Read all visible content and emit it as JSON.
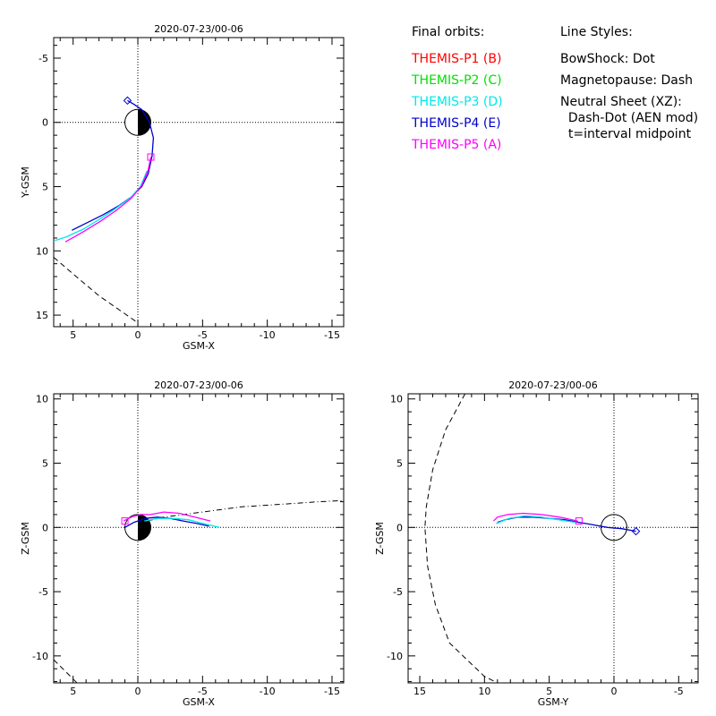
{
  "page": {
    "background": "#ffffff"
  },
  "legend": {
    "orbits_title": "Final orbits:",
    "orbits": [
      {
        "label": "THEMIS-P1 (B)",
        "color": "#ff0000"
      },
      {
        "label": "THEMIS-P2 (C)",
        "color": "#00e000"
      },
      {
        "label": "THEMIS-P3 (D)",
        "color": "#00e8e8"
      },
      {
        "label": "THEMIS-P4 (E)",
        "color": "#0000cc"
      },
      {
        "label": "THEMIS-P5 (A)",
        "color": "#ff00ff"
      }
    ],
    "styles_title": "Line Styles:",
    "styles": [
      "BowShock: Dot",
      "Magnetopause: Dash",
      "Neutral Sheet (XZ):",
      "  Dash-Dot (AEN mod)",
      "  t=interval midpoint"
    ]
  },
  "chart_data": [
    {
      "type": "line",
      "title": "2020-07-23/00-06",
      "xlabel": "GSM-X",
      "ylabel": "Y-GSM",
      "xlim": [
        6.5,
        -15.9
      ],
      "ylim": [
        -6.6,
        15.9
      ],
      "xticks": [
        5,
        0,
        -5,
        -10,
        -15
      ],
      "yticks": [
        -5,
        0,
        5,
        10,
        15
      ],
      "earth": "day-night",
      "series": [
        {
          "color": "#0000cc",
          "points": [
            [
              0.8,
              -1.7
            ],
            [
              0.3,
              -1.4
            ],
            [
              -0.3,
              -1.0
            ],
            [
              -0.9,
              0.0
            ],
            [
              -1.2,
              1.2
            ],
            [
              -1.1,
              2.6
            ],
            [
              -0.8,
              4.0
            ],
            [
              -0.3,
              5.0
            ],
            [
              0.5,
              5.8
            ],
            [
              1.5,
              6.5
            ],
            [
              2.7,
              7.2
            ],
            [
              3.9,
              7.8
            ],
            [
              5.1,
              8.4
            ]
          ]
        },
        {
          "color": "#00e8e8",
          "points": [
            [
              -0.7,
              3.8
            ],
            [
              -0.2,
              5.0
            ],
            [
              0.6,
              5.9
            ],
            [
              1.7,
              6.7
            ],
            [
              2.9,
              7.5
            ],
            [
              4.2,
              8.3
            ],
            [
              5.5,
              8.9
            ],
            [
              6.4,
              9.2
            ]
          ]
        },
        {
          "color": "#ff00ff",
          "points": [
            [
              -1.0,
              2.7
            ],
            [
              -0.8,
              3.7
            ],
            [
              -0.3,
              4.9
            ],
            [
              0.5,
              5.9
            ],
            [
              1.6,
              6.8
            ],
            [
              2.9,
              7.7
            ],
            [
              4.2,
              8.5
            ],
            [
              5.6,
              9.3
            ]
          ]
        }
      ],
      "markers": [
        {
          "shape": "diamond",
          "color": "#0000cc",
          "x": 0.8,
          "y": -1.7
        },
        {
          "shape": "square",
          "color": "#ff00ff",
          "x": -1.0,
          "y": 2.7
        }
      ],
      "boundaries": [
        {
          "style": "dash",
          "points": [
            [
              6.5,
              10.5
            ],
            [
              5.0,
              11.8
            ],
            [
              3.0,
              13.5
            ],
            [
              1.0,
              14.9
            ],
            [
              0.0,
              15.6
            ]
          ]
        }
      ]
    },
    {
      "type": "line",
      "title": "2020-07-23/00-06",
      "xlabel": "GSM-X",
      "ylabel": "Z-GSM",
      "xlim": [
        6.5,
        -15.9
      ],
      "ylim": [
        10.4,
        -12.1
      ],
      "xticks": [
        5,
        0,
        -5,
        -10,
        -15
      ],
      "yticks": [
        10,
        5,
        0,
        -5,
        -10
      ],
      "earth": "day-night",
      "series": [
        {
          "color": "#0000cc",
          "points": [
            [
              1.0,
              0.0
            ],
            [
              0.3,
              0.4
            ],
            [
              -0.6,
              0.7
            ],
            [
              -1.5,
              0.8
            ],
            [
              -2.5,
              0.7
            ],
            [
              -3.5,
              0.5
            ],
            [
              -4.6,
              0.3
            ],
            [
              -5.5,
              0.1
            ]
          ]
        },
        {
          "color": "#00e8e8",
          "points": [
            [
              -0.5,
              0.5
            ],
            [
              -1.5,
              0.7
            ],
            [
              -2.7,
              0.7
            ],
            [
              -3.9,
              0.6
            ],
            [
              -5.1,
              0.3
            ],
            [
              -6.3,
              0.0
            ]
          ]
        },
        {
          "color": "#ff00ff",
          "points": [
            [
              -1.0,
              1.0
            ],
            [
              -2.0,
              1.2
            ],
            [
              -3.2,
              1.1
            ],
            [
              -4.4,
              0.8
            ],
            [
              -5.6,
              0.5
            ]
          ]
        },
        {
          "color": "#ff00ff",
          "points": [
            [
              1.1,
              0.5
            ],
            [
              0.5,
              0.8
            ],
            [
              -0.2,
              1.0
            ],
            [
              -1.0,
              1.0
            ]
          ]
        }
      ],
      "markers": [
        {
          "shape": "square",
          "color": "#ff00ff",
          "x": 1.0,
          "y": 0.5
        }
      ],
      "boundaries": [
        {
          "style": "dash-dot",
          "points": [
            [
              1.0,
              0.1
            ],
            [
              -2.0,
              0.8
            ],
            [
              -5.0,
              1.2
            ],
            [
              -8.0,
              1.6
            ],
            [
              -11.0,
              1.8
            ],
            [
              -14.0,
              2.0
            ],
            [
              -15.9,
              2.1
            ]
          ]
        },
        {
          "style": "dash",
          "points": [
            [
              6.5,
              -10.3
            ],
            [
              5.5,
              -11.3
            ],
            [
              4.7,
              -12.1
            ]
          ]
        }
      ]
    },
    {
      "type": "line",
      "title": "2020-07-23/00-06",
      "xlabel": "GSM-Y",
      "ylabel": "Z-GSM",
      "xlim": [
        15.9,
        -6.5
      ],
      "ylim": [
        10.4,
        -12.1
      ],
      "xticks": [
        15,
        10,
        5,
        0,
        -5
      ],
      "yticks": [
        10,
        5,
        0,
        -5,
        -10
      ],
      "earth": "circle",
      "series": [
        {
          "color": "#0000cc",
          "points": [
            [
              -1.7,
              -0.3
            ],
            [
              -0.6,
              -0.1
            ],
            [
              0.5,
              0.0
            ],
            [
              1.6,
              0.2
            ],
            [
              2.7,
              0.4
            ],
            [
              3.8,
              0.6
            ],
            [
              5.0,
              0.7
            ],
            [
              6.2,
              0.8
            ],
            [
              7.4,
              0.8
            ],
            [
              8.4,
              0.6
            ],
            [
              9.0,
              0.4
            ]
          ]
        },
        {
          "color": "#00e8e8",
          "points": [
            [
              3.0,
              0.4
            ],
            [
              4.3,
              0.6
            ],
            [
              5.6,
              0.8
            ],
            [
              6.9,
              0.9
            ],
            [
              8.1,
              0.7
            ],
            [
              9.1,
              0.3
            ]
          ]
        },
        {
          "color": "#ff00ff",
          "points": [
            [
              2.8,
              0.5
            ],
            [
              4.2,
              0.8
            ],
            [
              5.6,
              1.0
            ],
            [
              7.0,
              1.1
            ],
            [
              8.2,
              1.0
            ],
            [
              9.0,
              0.8
            ],
            [
              9.3,
              0.5
            ]
          ]
        }
      ],
      "markers": [
        {
          "shape": "diamond",
          "color": "#0000cc",
          "x": -1.7,
          "y": -0.3
        },
        {
          "shape": "square",
          "color": "#ff00ff",
          "x": 2.7,
          "y": 0.5
        }
      ],
      "boundaries": [
        {
          "style": "dash",
          "points": [
            [
              11.5,
              10.4
            ],
            [
              13.0,
              7.6
            ],
            [
              14.0,
              4.5
            ],
            [
              14.5,
              1.6
            ],
            [
              14.6,
              0.0
            ],
            [
              14.4,
              -3.0
            ],
            [
              13.8,
              -6.0
            ],
            [
              12.7,
              -9.0
            ],
            [
              10.0,
              -11.6
            ],
            [
              9.0,
              -12.1
            ]
          ]
        }
      ]
    }
  ]
}
